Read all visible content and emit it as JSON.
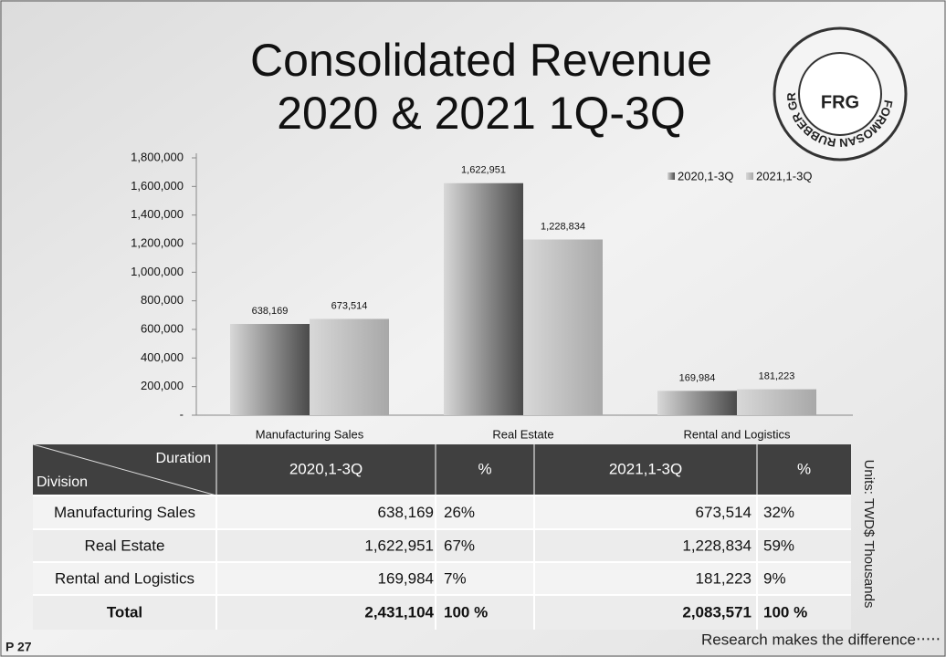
{
  "slide": {
    "title_lines": [
      "Consolidated Revenue",
      "2020 & 2021 1Q-3Q"
    ],
    "page": "P 27",
    "footer": "Research makes the difference‧‧‧‧‧",
    "units": "Units: TWD$ Thousands",
    "logo_ring": "FORMOSAN RUBBER GROUP",
    "logo_mark": "FRG"
  },
  "chart_data": {
    "type": "bar",
    "categories": [
      "Manufacturing Sales",
      "Real Estate",
      "Rental and Logistics"
    ],
    "series": [
      {
        "name": "2020,1-3Q",
        "color": "#4a4a4a",
        "values": [
          638169,
          1622951,
          169984
        ],
        "value_labels": [
          "638,169",
          "1,622,951",
          "169,984"
        ]
      },
      {
        "name": "2021,1-3Q",
        "color": "#a8a8a8",
        "values": [
          673514,
          1228834,
          181223
        ],
        "value_labels": [
          "673,514",
          "1,228,834",
          "181,223"
        ]
      }
    ],
    "ylim": [
      0,
      1800000
    ],
    "yticks": [
      {
        "value": 0,
        "label": "-"
      },
      {
        "value": 200000,
        "label": "200,000"
      },
      {
        "value": 400000,
        "label": "400,000"
      },
      {
        "value": 600000,
        "label": "600,000"
      },
      {
        "value": 800000,
        "label": "800,000"
      },
      {
        "value": 1000000,
        "label": "1,000,000"
      },
      {
        "value": 1200000,
        "label": "1,200,000"
      },
      {
        "value": 1400000,
        "label": "1,400,000"
      },
      {
        "value": 1600000,
        "label": "1,600,000"
      },
      {
        "value": 1800000,
        "label": "1,800,000"
      }
    ],
    "legend": "upper right",
    "grid": false
  },
  "table": {
    "header_duration": "Duration",
    "header_division": "Division",
    "columns": [
      "2020,1-3Q",
      "%",
      "2021,1-3Q",
      "%"
    ],
    "rows": [
      [
        "Manufacturing Sales",
        "638,169",
        "26%",
        "673,514",
        "32%"
      ],
      [
        "Real Estate",
        "1,622,951",
        "67%",
        "1,228,834",
        "59%"
      ],
      [
        "Rental and Logistics",
        "169,984",
        "7%",
        "181,223",
        "9%"
      ],
      [
        "Total",
        "2,431,104",
        "100 %",
        "2,083,571",
        "100 %"
      ]
    ]
  }
}
